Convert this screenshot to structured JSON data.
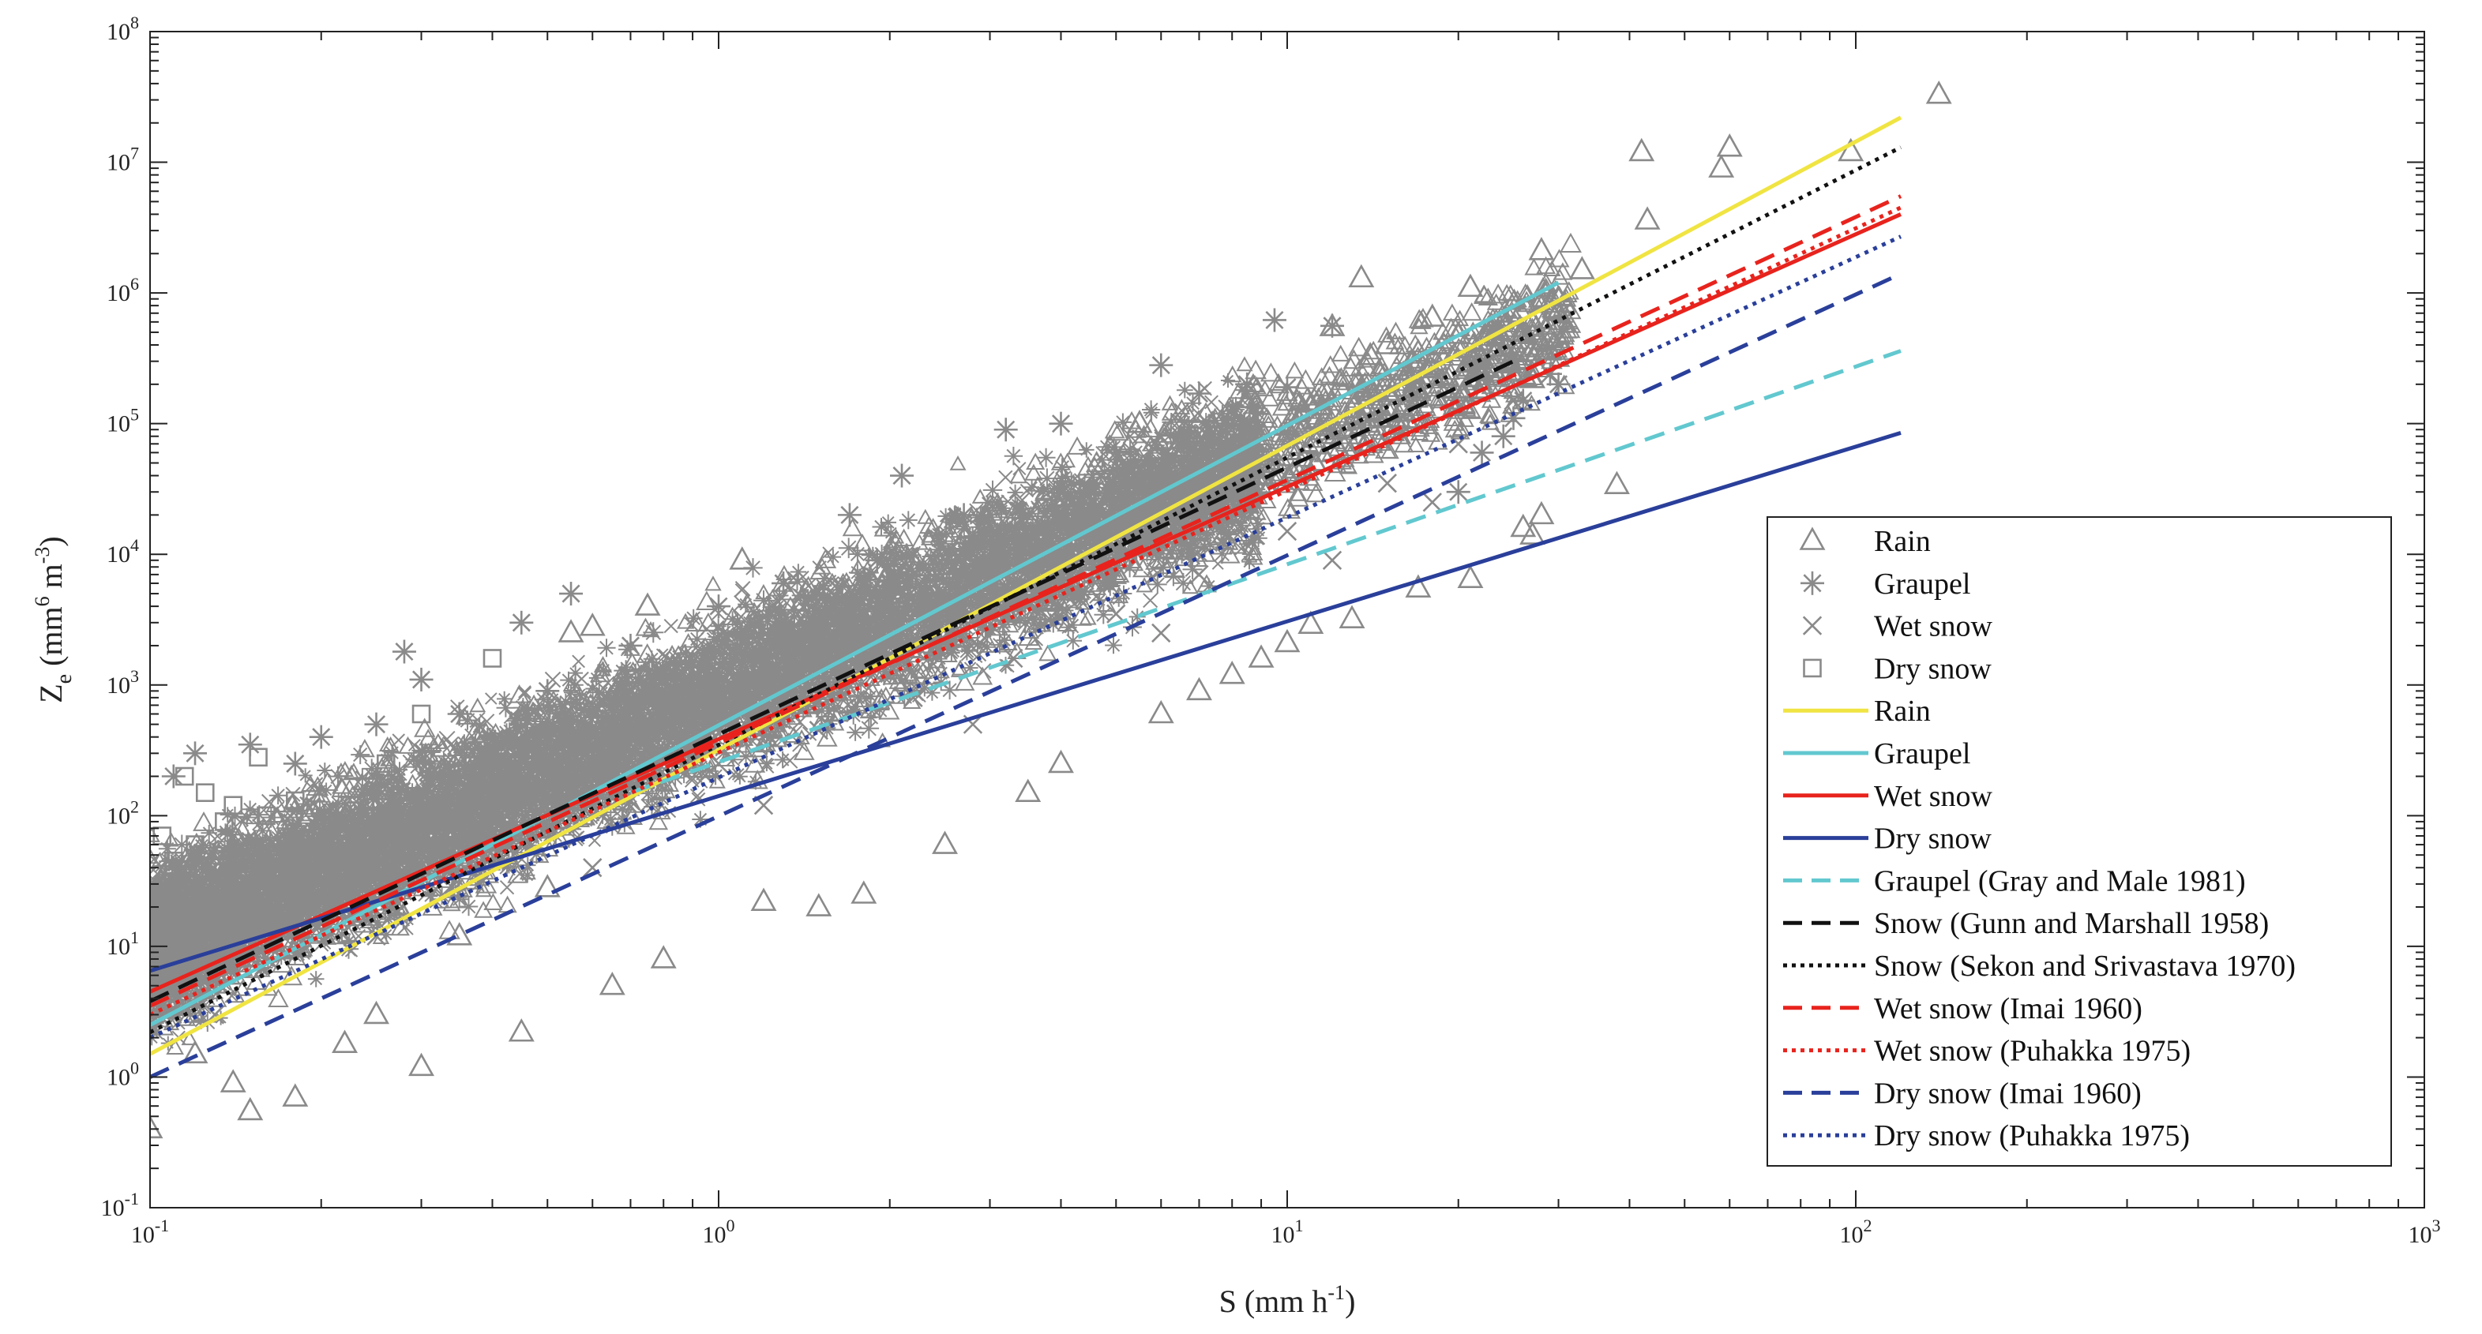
{
  "chart_data": {
    "type": "scatter",
    "x_scale": "log",
    "y_scale": "log",
    "xlim": [
      0.1,
      1000
    ],
    "ylim": [
      0.1,
      100000000
    ],
    "x_ticks": [
      {
        "value": 0.1,
        "mant": "10",
        "exp": "-1"
      },
      {
        "value": 1,
        "mant": "10",
        "exp": "0"
      },
      {
        "value": 10,
        "mant": "10",
        "exp": "1"
      },
      {
        "value": 100,
        "mant": "10",
        "exp": "2"
      },
      {
        "value": 1000,
        "mant": "10",
        "exp": "3"
      }
    ],
    "y_ticks": [
      {
        "value": 0.1,
        "mant": "10",
        "exp": "-1"
      },
      {
        "value": 1,
        "mant": "10",
        "exp": "0"
      },
      {
        "value": 10,
        "mant": "10",
        "exp": "1"
      },
      {
        "value": 100,
        "mant": "10",
        "exp": "2"
      },
      {
        "value": 1000,
        "mant": "10",
        "exp": "3"
      },
      {
        "value": 10000,
        "mant": "10",
        "exp": "4"
      },
      {
        "value": 100000,
        "mant": "10",
        "exp": "5"
      },
      {
        "value": 1000000,
        "mant": "10",
        "exp": "6"
      },
      {
        "value": 10000000,
        "mant": "10",
        "exp": "7"
      },
      {
        "value": 100000000,
        "mant": "10",
        "exp": "8"
      }
    ],
    "xlabel": {
      "base": "S (mm h",
      "sup": "-1",
      "tail": ")"
    },
    "ylabel": {
      "base": "Z",
      "sub": "e",
      "mid": " (mm",
      "sup1": "6",
      "mid2": " m",
      "sup2": "-3",
      "tail": ")"
    },
    "scatter_series": [
      {
        "name": "Rain",
        "marker": "triangle",
        "color": "#8a8a8a",
        "points": [
          [
            140,
            33000000
          ],
          [
            60,
            13000000
          ],
          [
            42,
            12000000
          ],
          [
            98,
            12000000
          ],
          [
            58,
            9000000
          ],
          [
            43,
            3600000
          ],
          [
            28,
            2100000
          ],
          [
            33,
            1500000
          ],
          [
            13.5,
            1300000
          ],
          [
            21,
            1100000
          ],
          [
            18,
            650000
          ],
          [
            12,
            550000
          ],
          [
            15,
            400000
          ],
          [
            17,
            350000
          ],
          [
            14,
            330000
          ],
          [
            20,
            480000
          ],
          [
            27,
            220000
          ],
          [
            22,
            180000
          ],
          [
            38,
            34000
          ],
          [
            28,
            20000
          ],
          [
            26,
            16000
          ],
          [
            27,
            14000
          ],
          [
            21,
            6500
          ],
          [
            17,
            5500
          ],
          [
            13,
            3200
          ],
          [
            11,
            2900
          ],
          [
            10,
            2100
          ],
          [
            9,
            1600
          ],
          [
            5.5,
            100000
          ],
          [
            6.5,
            75000
          ],
          [
            1.1,
            9000
          ],
          [
            0.75,
            4000
          ],
          [
            0.6,
            2800
          ],
          [
            0.55,
            2500
          ],
          [
            1.8,
            25
          ],
          [
            1.2,
            22
          ],
          [
            0.5,
            28
          ],
          [
            0.35,
            12
          ],
          [
            0.25,
            3.0
          ],
          [
            0.15,
            0.55
          ],
          [
            0.1,
            0.4
          ],
          [
            0.12,
            1.5
          ],
          [
            0.18,
            0.7
          ],
          [
            0.3,
            1.2
          ],
          [
            0.45,
            2.2
          ],
          [
            0.8,
            8
          ],
          [
            2.5,
            60
          ],
          [
            3.5,
            150
          ],
          [
            6,
            600
          ],
          [
            8,
            1200
          ],
          [
            0.14,
            0.9
          ],
          [
            0.22,
            1.8
          ],
          [
            0.65,
            5
          ],
          [
            1.5,
            20
          ],
          [
            4,
            250
          ],
          [
            7,
            900
          ]
        ]
      },
      {
        "name": "Graupel",
        "marker": "asterisk",
        "color": "#8a8a8a",
        "points": [
          [
            9.5,
            620000
          ],
          [
            12,
            560000
          ],
          [
            6,
            280000
          ],
          [
            8.5,
            200000
          ],
          [
            10,
            190000
          ],
          [
            7,
            170000
          ],
          [
            29,
            240000
          ],
          [
            30,
            200000
          ],
          [
            26,
            150000
          ],
          [
            25,
            110000
          ],
          [
            24,
            80000
          ],
          [
            22,
            60000
          ],
          [
            20,
            30000
          ],
          [
            3.2,
            90000
          ],
          [
            4,
            100000
          ],
          [
            2.1,
            40000
          ],
          [
            1.7,
            20000
          ],
          [
            0.55,
            5000
          ],
          [
            0.45,
            3000
          ],
          [
            0.28,
            1800
          ],
          [
            0.3,
            1100
          ],
          [
            0.25,
            500
          ],
          [
            0.2,
            400
          ],
          [
            0.15,
            350
          ],
          [
            0.12,
            300
          ],
          [
            0.11,
            200
          ],
          [
            0.35,
            600
          ],
          [
            0.5,
            900
          ],
          [
            0.7,
            2000
          ],
          [
            1.0,
            4000
          ],
          [
            1.3,
            6000
          ],
          [
            1.9,
            9000
          ],
          [
            2.7,
            20000
          ],
          [
            5,
            60000
          ],
          [
            6.5,
            80000
          ],
          [
            0.18,
            250
          ],
          [
            0.9,
            1500
          ],
          [
            1.5,
            3000
          ],
          [
            3,
            15000
          ],
          [
            4.5,
            30000
          ]
        ]
      },
      {
        "name": "Wet snow",
        "marker": "x",
        "color": "#8a8a8a",
        "points": [
          [
            0.12,
            6
          ],
          [
            0.15,
            9
          ],
          [
            0.2,
            15
          ],
          [
            0.3,
            30
          ],
          [
            0.45,
            60
          ],
          [
            0.7,
            130
          ],
          [
            1.0,
            250
          ],
          [
            1.5,
            450
          ],
          [
            2.2,
            800
          ],
          [
            3.3,
            1600
          ],
          [
            5,
            3500
          ],
          [
            7,
            7000
          ],
          [
            10,
            15000
          ],
          [
            15,
            35000
          ],
          [
            20,
            70000
          ],
          [
            25,
            150000
          ],
          [
            0.13,
            3
          ],
          [
            0.25,
            12
          ],
          [
            0.6,
            40
          ],
          [
            1.2,
            120
          ],
          [
            2.8,
            500
          ],
          [
            6,
            2500
          ],
          [
            12,
            9000
          ],
          [
            18,
            25000
          ]
        ]
      },
      {
        "name": "Dry snow",
        "marker": "square",
        "color": "#8a8a8a",
        "points": [
          [
            0.115,
            200
          ],
          [
            0.125,
            150
          ],
          [
            0.14,
            120
          ],
          [
            0.155,
            280
          ],
          [
            0.135,
            90
          ],
          [
            0.12,
            60
          ],
          [
            0.11,
            45
          ],
          [
            0.105,
            70
          ],
          [
            0.13,
            40
          ],
          [
            0.16,
            100
          ],
          [
            0.18,
            130
          ],
          [
            0.22,
            80
          ],
          [
            0.4,
            1600
          ],
          [
            0.3,
            600
          ],
          [
            0.26,
            250
          ],
          [
            0.2,
            55
          ],
          [
            0.17,
            35
          ],
          [
            0.145,
            25
          ],
          [
            0.11,
            30
          ]
        ]
      }
    ],
    "line_series": [
      {
        "name": "Rain",
        "color": "#f0e442",
        "dash": "solid",
        "x": [
          0.1,
          120
        ],
        "y": [
          1.5,
          22000000
        ]
      },
      {
        "name": "Graupel",
        "color": "#62c8cf",
        "dash": "solid",
        "x": [
          0.1,
          30
        ],
        "y": [
          2.5,
          1200000
        ]
      },
      {
        "name": "Wet snow",
        "color": "#e8231d",
        "dash": "solid",
        "x": [
          0.1,
          120
        ],
        "y": [
          4.5,
          4000000
        ]
      },
      {
        "name": "Dry snow",
        "color": "#2a3f9a",
        "dash": "solid",
        "x": [
          0.1,
          120
        ],
        "y": [
          6.5,
          85000
        ]
      },
      {
        "name": "Graupel (Gray and Male 1981)",
        "color": "#62c8cf",
        "dash": "dashed",
        "x": [
          0.7,
          120
        ],
        "y": [
          150,
          360000
        ]
      },
      {
        "name": "Snow (Gunn and Marshall 1958)",
        "color": "#111111",
        "dash": "dashed",
        "x": [
          0.1,
          25
        ],
        "y": [
          3.8,
          300000
        ]
      },
      {
        "name": "Snow (Sekon and Srivastava 1970)",
        "color": "#111111",
        "dash": "dotted",
        "x": [
          0.1,
          120
        ],
        "y": [
          2.2,
          13000000
        ]
      },
      {
        "name": "Wet snow (Imai 1960)",
        "color": "#e8231d",
        "dash": "dashed",
        "x": [
          0.1,
          120
        ],
        "y": [
          3.5,
          5500000
        ]
      },
      {
        "name": "Wet snow (Puhakka 1975)",
        "color": "#e8231d",
        "dash": "dotted",
        "x": [
          0.1,
          120
        ],
        "y": [
          3.0,
          4500000
        ]
      },
      {
        "name": "Dry snow (Imai 1960)",
        "color": "#2a3f9a",
        "dash": "dashed",
        "x": [
          0.1,
          120
        ],
        "y": [
          1.0,
          1400000
        ]
      },
      {
        "name": "Dry snow (Puhakka 1975)",
        "color": "#2a3f9a",
        "dash": "dotted",
        "x": [
          0.1,
          120
        ],
        "y": [
          2.0,
          2700000
        ]
      }
    ],
    "legend": {
      "position": "bottom-right",
      "entries": [
        {
          "label": "Rain",
          "kind": "marker",
          "marker": "triangle",
          "color": "#8a8a8a"
        },
        {
          "label": "Graupel",
          "kind": "marker",
          "marker": "asterisk",
          "color": "#8a8a8a"
        },
        {
          "label": "Wet snow",
          "kind": "marker",
          "marker": "x",
          "color": "#8a8a8a"
        },
        {
          "label": "Dry snow",
          "kind": "marker",
          "marker": "square",
          "color": "#8a8a8a"
        },
        {
          "label": "Rain",
          "kind": "line",
          "color": "#f0e442",
          "dash": "solid"
        },
        {
          "label": "Graupel",
          "kind": "line",
          "color": "#62c8cf",
          "dash": "solid"
        },
        {
          "label": "Wet snow",
          "kind": "line",
          "color": "#e8231d",
          "dash": "solid"
        },
        {
          "label": "Dry snow",
          "kind": "line",
          "color": "#2a3f9a",
          "dash": "solid"
        },
        {
          "label": "Graupel (Gray and Male 1981)",
          "kind": "line",
          "color": "#62c8cf",
          "dash": "dashed"
        },
        {
          "label": "Snow (Gunn and Marshall 1958)",
          "kind": "line",
          "color": "#111111",
          "dash": "dashed"
        },
        {
          "label": "Snow (Sekon and Srivastava 1970)",
          "kind": "line",
          "color": "#111111",
          "dash": "dotted"
        },
        {
          "label": "Wet snow (Imai 1960)",
          "kind": "line",
          "color": "#e8231d",
          "dash": "dashed"
        },
        {
          "label": "Wet snow (Puhakka 1975)",
          "kind": "line",
          "color": "#e8231d",
          "dash": "dotted"
        },
        {
          "label": "Dry snow (Imai 1960)",
          "kind": "line",
          "color": "#2a3f9a",
          "dash": "dashed"
        },
        {
          "label": "Dry snow (Puhakka 1975)",
          "kind": "line",
          "color": "#2a3f9a",
          "dash": "dotted"
        }
      ]
    },
    "grid": false,
    "scatter_cloud": {
      "color": "#8a8a8a",
      "description_free": true
    }
  }
}
